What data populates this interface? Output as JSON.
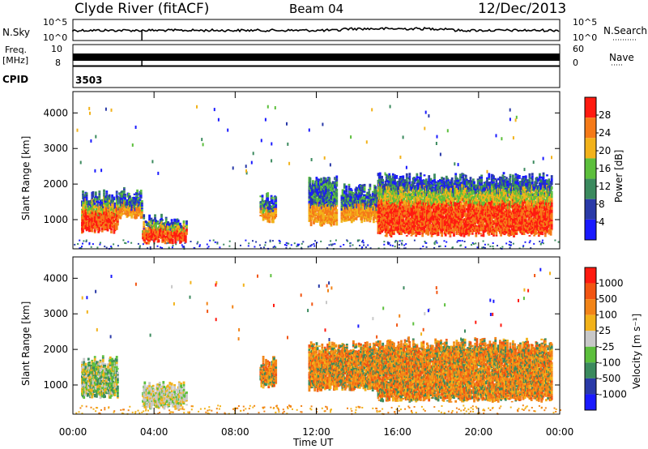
{
  "header": {
    "station": "Clyde River (fitACF)",
    "beam": "Beam 04",
    "date": "12/Dec/2013"
  },
  "top_panels": {
    "nsky_label": "N.Sky",
    "nsky_hi": "10^5",
    "nsky_lo": "10^0",
    "nsearch_label": "N.Search",
    "nsearch_hi": "10^5",
    "nsearch_lo": "10^0",
    "freq_label_1": "Freq.",
    "freq_label_2": "[MHz]",
    "freq_hi": "10",
    "freq_lo": "8",
    "nave_label": "Nave",
    "nave_hi": "60",
    "nave_lo": "0",
    "cpid_label": "CPID",
    "cpid_value": "3503"
  },
  "colors": {
    "power": [
      "#1a1aff",
      "#2a3aa8",
      "#3b8a5e",
      "#5cbf3c",
      "#f2b21a",
      "#f57a18",
      "#ff1a10"
    ],
    "velocity": [
      "#ff1a10",
      "#f25512",
      "#f28418",
      "#f2b21a",
      "#c8c8c8",
      "#5cbf3c",
      "#3b8a5e",
      "#2a3aa8",
      "#1a1aff"
    ]
  },
  "chart_data": [
    {
      "type": "heatmap",
      "title": "Power",
      "ylabel": "Slant Range [km]",
      "xlabel": "",
      "ylim": [
        180,
        4600
      ],
      "xlim": [
        0,
        24
      ],
      "y_ticks": [
        "1000",
        "2000",
        "3000",
        "4000"
      ],
      "x_ticks": [],
      "colorbar": {
        "label": "Power [dB]",
        "ticks": [
          "4",
          "8",
          "12",
          "16",
          "20",
          "24",
          "28"
        ],
        "range": [
          0,
          32
        ]
      },
      "echo_regions": [
        {
          "t0": 0.4,
          "t1": 2.2,
          "r0": 600,
          "r1": 1800,
          "level": "high"
        },
        {
          "t0": 2.2,
          "t1": 3.4,
          "r0": 1000,
          "r1": 1900,
          "level": "mid"
        },
        {
          "t0": 3.4,
          "t1": 5.6,
          "r0": 300,
          "r1": 1100,
          "level": "high"
        },
        {
          "t0": 9.2,
          "t1": 10.0,
          "r0": 900,
          "r1": 1800,
          "level": "mid"
        },
        {
          "t0": 11.6,
          "t1": 13.0,
          "r0": 800,
          "r1": 2200,
          "level": "mid"
        },
        {
          "t0": 13.2,
          "t1": 15.0,
          "r0": 900,
          "r1": 2000,
          "level": "mid"
        },
        {
          "t0": 15.0,
          "t1": 23.6,
          "r0": 500,
          "r1": 2300,
          "level": "high"
        }
      ]
    },
    {
      "type": "heatmap",
      "title": "Velocity",
      "ylabel": "Slant Range [km]",
      "xlabel": "Time UT",
      "ylim": [
        180,
        4600
      ],
      "xlim": [
        0,
        24
      ],
      "y_ticks": [
        "1000",
        "2000",
        "3000",
        "4000"
      ],
      "x_ticks": [
        "00:00",
        "04:00",
        "08:00",
        "12:00",
        "16:00",
        "20:00",
        "00:00"
      ],
      "colorbar": {
        "label": "Velocity [m s⁻¹]",
        "ticks": [
          "1000",
          "500",
          "100",
          "25",
          "-25",
          "-100",
          "-500",
          "-1000"
        ],
        "range": [
          -1000,
          1000
        ]
      },
      "echo_regions": [
        {
          "t0": 0.4,
          "t1": 2.2,
          "r0": 600,
          "r1": 1800,
          "level": "green"
        },
        {
          "t0": 3.4,
          "t1": 5.6,
          "r0": 300,
          "r1": 1100,
          "level": "gray"
        },
        {
          "t0": 9.2,
          "t1": 10.0,
          "r0": 900,
          "r1": 1800,
          "level": "orange"
        },
        {
          "t0": 11.6,
          "t1": 15.0,
          "r0": 800,
          "r1": 2200,
          "level": "orange"
        },
        {
          "t0": 15.0,
          "t1": 23.6,
          "r0": 500,
          "r1": 2300,
          "level": "orange"
        }
      ]
    }
  ]
}
